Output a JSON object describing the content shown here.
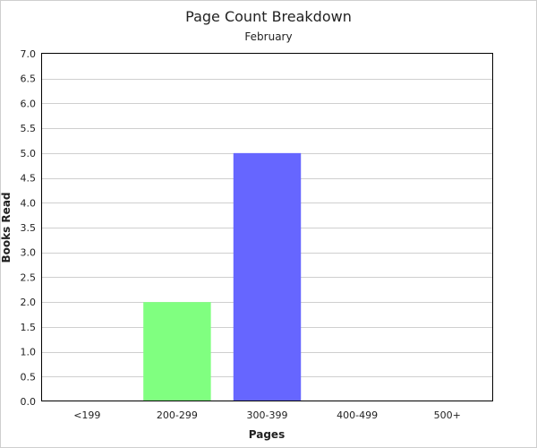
{
  "chart_data": {
    "type": "bar",
    "title": "Page Count Breakdown",
    "subtitle": "February",
    "xlabel": "Pages",
    "ylabel": "Books Read",
    "categories": [
      "<199",
      "200-299",
      "300-399",
      "400-499",
      "500+"
    ],
    "values": [
      0,
      2,
      5,
      0,
      0
    ],
    "bar_colors": [
      "#6666ff",
      "#80ff80",
      "#6666ff",
      "#6666ff",
      "#6666ff"
    ],
    "ylim": [
      0,
      7
    ],
    "ytick_step": 0.5,
    "ytick_labels": [
      "0.0",
      "0.5",
      "1.0",
      "1.5",
      "2.0",
      "2.5",
      "3.0",
      "3.5",
      "4.0",
      "4.5",
      "5.0",
      "5.5",
      "6.0",
      "6.5",
      "7.0"
    ],
    "grid": true,
    "legend": "none"
  }
}
